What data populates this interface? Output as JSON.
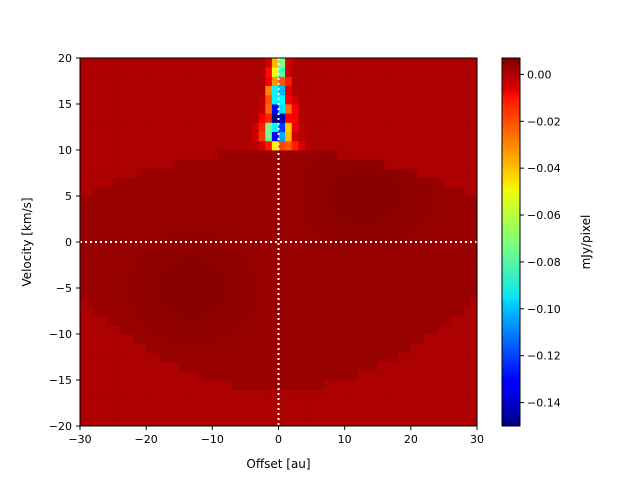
{
  "chart_data": {
    "type": "heatmap",
    "title": "",
    "xlabel": "Offset [au]",
    "ylabel": "Velocity [km/s]",
    "xlim": [
      -30,
      30
    ],
    "ylim": [
      -20,
      20
    ],
    "x_ticks": [
      -30,
      -20,
      -10,
      0,
      10,
      20,
      30
    ],
    "x_tick_labels": [
      "−30",
      "−20",
      "−10",
      "0",
      "10",
      "20",
      "30"
    ],
    "y_ticks": [
      -20,
      -15,
      -10,
      -5,
      0,
      5,
      10,
      15,
      20
    ],
    "y_tick_labels": [
      "−20",
      "−15",
      "−10",
      "−5",
      "0",
      "5",
      "10",
      "15",
      "20"
    ],
    "colorbar": {
      "label": "mJy/pixel",
      "colormap": "jet",
      "vmin": -0.15,
      "vmax": 0.007,
      "ticks": [
        0.0,
        -0.02,
        -0.04,
        -0.06,
        -0.08,
        -0.1,
        -0.12,
        -0.14
      ],
      "tick_labels": [
        "0.00",
        "−0.02",
        "−0.04",
        "−0.06",
        "−0.08",
        "−0.10",
        "−0.12",
        "−0.14"
      ]
    },
    "reference_lines": [
      {
        "orientation": "vertical",
        "value": 0,
        "style": "dotted",
        "color": "#ffffff"
      },
      {
        "orientation": "horizontal",
        "value": 0,
        "style": "dotted",
        "color": "#ffffff"
      }
    ],
    "grid": false,
    "background_value": 0.0,
    "features": {
      "emission_diamond": {
        "x_half_width": 30,
        "v_top": 10,
        "v_bottom": -16,
        "value": 0.005
      },
      "absorption_plume": {
        "x_range": [
          -5,
          4
        ],
        "v_range": [
          10,
          20
        ],
        "min_value": -0.15
      }
    }
  }
}
